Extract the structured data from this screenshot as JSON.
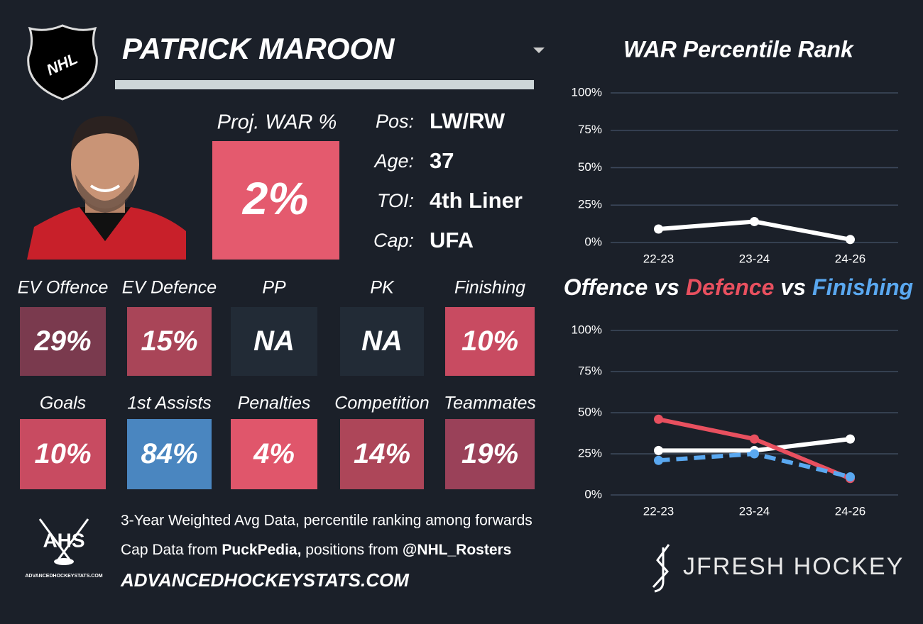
{
  "header": {
    "player": "PATRICK MAROON"
  },
  "logos": {
    "nhl": "NHL",
    "ahs": "AHS",
    "ahs_site": "ADVANCEDHOCKEYSTATS.COM",
    "brand": "JFRESH HOCKEY"
  },
  "proj_war": {
    "label": "Proj. WAR %",
    "value": "2%",
    "color": "#e45a6e"
  },
  "bio": [
    {
      "label": "Pos:",
      "value": "LW/RW"
    },
    {
      "label": "Age:",
      "value": "37"
    },
    {
      "label": "TOI:",
      "value": "4th Liner"
    },
    {
      "label": "Cap:",
      "value": "UFA"
    }
  ],
  "tiles": [
    {
      "label": "EV Offence",
      "value": "29%",
      "color": "#7a3a4e"
    },
    {
      "label": "EV Defence",
      "value": "15%",
      "color": "#a94558"
    },
    {
      "label": "PP",
      "value": "NA",
      "color": "#222b36"
    },
    {
      "label": "PK",
      "value": "NA",
      "color": "#222b36"
    },
    {
      "label": "Finishing",
      "value": "10%",
      "color": "#c84b61"
    },
    {
      "label": "Goals",
      "value": "10%",
      "color": "#c84b61"
    },
    {
      "label": "1st Assists",
      "value": "84%",
      "color": "#4a86c0"
    },
    {
      "label": "Penalties",
      "value": "4%",
      "color": "#e0566b"
    },
    {
      "label": "Competition",
      "value": "14%",
      "color": "#ad4659"
    },
    {
      "label": "Teammates",
      "value": "19%",
      "color": "#9a4159"
    }
  ],
  "footer": {
    "note": "3-Year Weighted Avg Data, percentile ranking among forwards",
    "credits": [
      {
        "text": "Cap Data from ",
        "bold": false
      },
      {
        "text": "PuckPedia,",
        "bold": true
      },
      {
        "text": " positions from ",
        "bold": false
      },
      {
        "text": "@NHL_Rosters",
        "bold": true
      }
    ],
    "site": "ADVANCEDHOCKEYSTATS.COM"
  },
  "chart_data": [
    {
      "type": "line",
      "title": "WAR Percentile Rank",
      "categories": [
        "22-23",
        "23-24",
        "24-26"
      ],
      "series": [
        {
          "color": "#ffffff",
          "values": [
            9,
            14,
            2
          ]
        }
      ],
      "ylim": [
        0,
        100
      ],
      "yticks": [
        {
          "value": 0,
          "label": "0%"
        },
        {
          "value": 25,
          "label": "25%"
        },
        {
          "value": 50,
          "label": "50%"
        },
        {
          "value": 75,
          "label": "75%"
        },
        {
          "value": 100,
          "label": "100%"
        }
      ],
      "grid": true
    },
    {
      "type": "line",
      "title_separator": "vs",
      "categories": [
        "22-23",
        "23-24",
        "24-26"
      ],
      "series": [
        {
          "name": "Offence",
          "color": "#ffffff",
          "values": [
            27,
            27,
            34
          ],
          "dashed": false
        },
        {
          "name": "Defence",
          "color": "#e8505f",
          "values": [
            46,
            34,
            10
          ],
          "dashed": false
        },
        {
          "name": "Finishing",
          "color": "#5aa8f0",
          "values": [
            21,
            25,
            11
          ],
          "dashed": true
        }
      ],
      "ylim": [
        0,
        100
      ],
      "yticks": [
        {
          "value": 0,
          "label": "0%"
        },
        {
          "value": 25,
          "label": "25%"
        },
        {
          "value": 50,
          "label": "50%"
        },
        {
          "value": 75,
          "label": "75%"
        },
        {
          "value": 100,
          "label": "100%"
        }
      ],
      "grid": true
    }
  ]
}
